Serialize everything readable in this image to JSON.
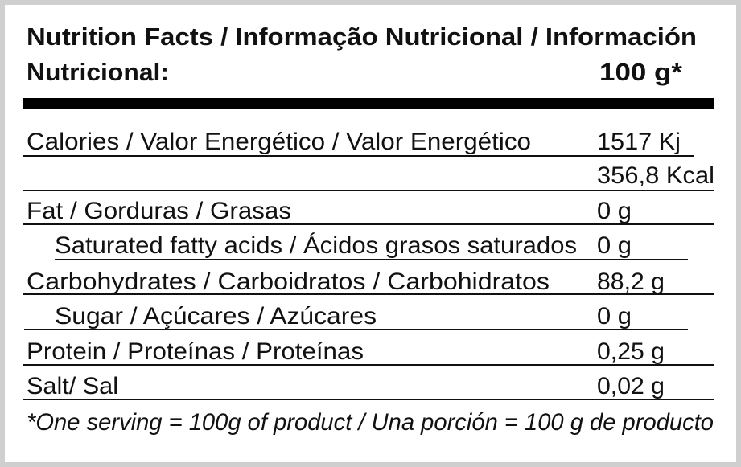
{
  "header": {
    "title_line1": "Nutrition Facts / Informação Nutricional / Información",
    "title_line2": "Nutricional:",
    "serving": "100 g*"
  },
  "rows": [
    {
      "label": "Calories / Valor Energético / Valor Energético",
      "values": [
        "1517 Kj",
        "356,8 Kcal"
      ]
    },
    {
      "label": "Fat / Gorduras / Grasas",
      "values": [
        "0 g"
      ]
    },
    {
      "label": "Saturated fatty acids / Ácidos grasos saturados",
      "values": [
        "0 g"
      ]
    },
    {
      "label": "Carbohydrates / Carboidratos / Carbohidratos",
      "values": [
        "88,2 g"
      ]
    },
    {
      "label": "Sugar / Açúcares / Azúcares",
      "values": [
        "0 g"
      ]
    },
    {
      "label": "Protein / Proteínas / Proteínas",
      "values": [
        "0,25 g"
      ]
    },
    {
      "label": "Salt/ Sal",
      "values": [
        "0,02 g"
      ]
    }
  ],
  "footnote": "*One serving = 100g of product / Una porción = 100 g de producto"
}
